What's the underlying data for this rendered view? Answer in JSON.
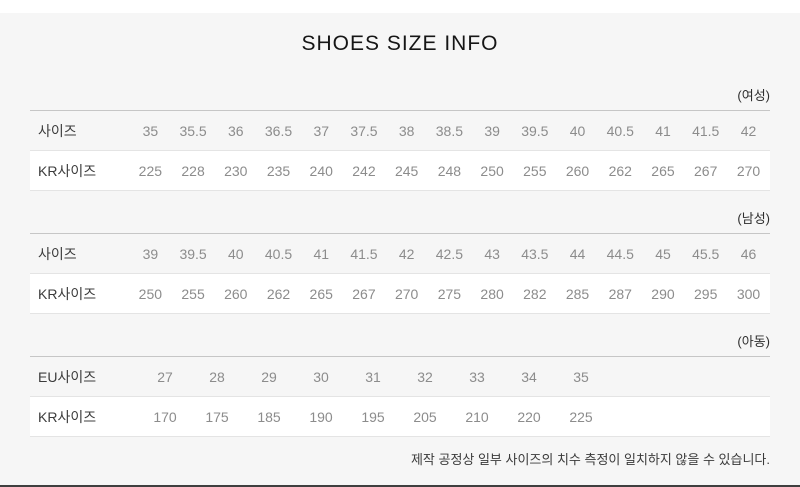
{
  "page": {
    "title": "SHOES SIZE INFO",
    "note": "제작 공정상 일부 사이즈의 치수 측정이 일치하지 않을 수 있습니다."
  },
  "colors": {
    "page_bg": "#f6f6f6",
    "top_strip": "#ffffff",
    "title_color": "#161616",
    "group_label_color": "#2e2e2e",
    "label_color": "#3c3c3c",
    "value_color": "#8c8c8c",
    "row_alt_bg": "#ffffff",
    "border_strong": "#c6c6c6",
    "border_light": "#e4e4e4",
    "note_color": "#3a3a3a",
    "bottom_line": "#3f3f3f"
  },
  "sections": [
    {
      "group_label": "(여성)",
      "compact": false,
      "rows": [
        {
          "label": "사이즈",
          "values": [
            "35",
            "35.5",
            "36",
            "36.5",
            "37",
            "37.5",
            "38",
            "38.5",
            "39",
            "39.5",
            "40",
            "40.5",
            "41",
            "41.5",
            "42"
          ]
        },
        {
          "label": "KR사이즈",
          "values": [
            "225",
            "228",
            "230",
            "235",
            "240",
            "242",
            "245",
            "248",
            "250",
            "255",
            "260",
            "262",
            "265",
            "267",
            "270"
          ]
        }
      ]
    },
    {
      "group_label": "(남성)",
      "compact": false,
      "rows": [
        {
          "label": "사이즈",
          "values": [
            "39",
            "39.5",
            "40",
            "40.5",
            "41",
            "41.5",
            "42",
            "42.5",
            "43",
            "43.5",
            "44",
            "44.5",
            "45",
            "45.5",
            "46"
          ]
        },
        {
          "label": "KR사이즈",
          "values": [
            "250",
            "255",
            "260",
            "262",
            "265",
            "267",
            "270",
            "275",
            "280",
            "282",
            "285",
            "287",
            "290",
            "295",
            "300"
          ]
        }
      ]
    },
    {
      "group_label": "(아동)",
      "compact": true,
      "rows": [
        {
          "label": "EU사이즈",
          "values": [
            "27",
            "28",
            "29",
            "30",
            "31",
            "32",
            "33",
            "34",
            "35"
          ]
        },
        {
          "label": "KR사이즈",
          "values": [
            "170",
            "175",
            "185",
            "190",
            "195",
            "205",
            "210",
            "220",
            "225"
          ]
        }
      ]
    }
  ]
}
